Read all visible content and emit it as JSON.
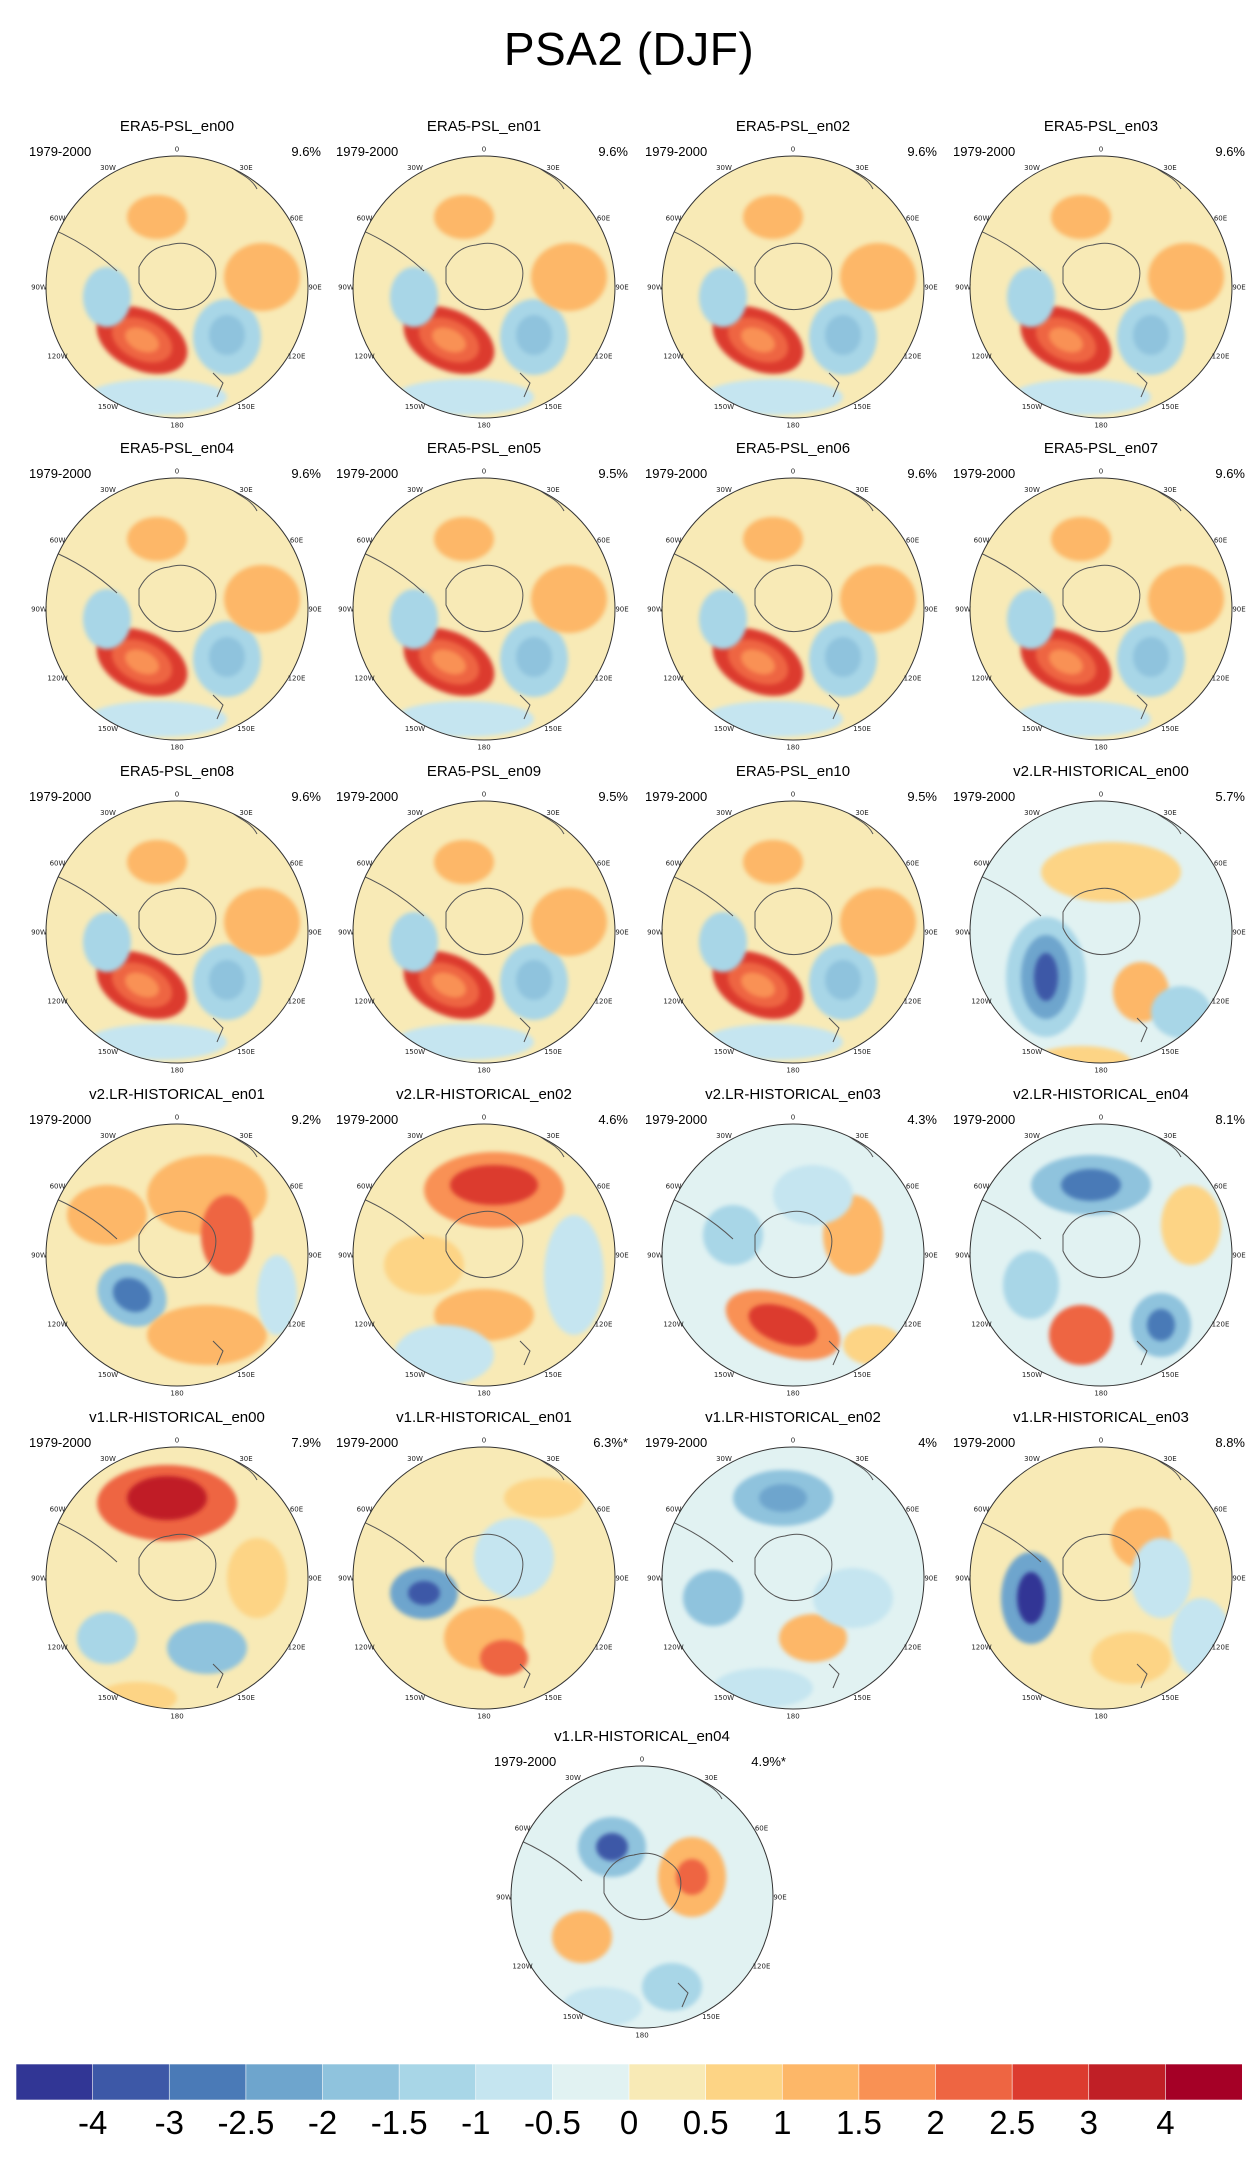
{
  "title": "PSA2 (DJF)",
  "lon_labels": [
    "0",
    "30E",
    "60E",
    "90E",
    "120E",
    "150E",
    "180",
    "150W",
    "120W",
    "90W",
    "60W",
    "30W"
  ],
  "panels": [
    {
      "name": "ERA5-PSL_en00",
      "period": "1979-2000",
      "pct": "9.6%",
      "type": "era5"
    },
    {
      "name": "ERA5-PSL_en01",
      "period": "1979-2000",
      "pct": "9.6%",
      "type": "era5"
    },
    {
      "name": "ERA5-PSL_en02",
      "period": "1979-2000",
      "pct": "9.6%",
      "type": "era5"
    },
    {
      "name": "ERA5-PSL_en03",
      "period": "1979-2000",
      "pct": "9.6%",
      "type": "era5"
    },
    {
      "name": "ERA5-PSL_en04",
      "period": "1979-2000",
      "pct": "9.6%",
      "type": "era5"
    },
    {
      "name": "ERA5-PSL_en05",
      "period": "1979-2000",
      "pct": "9.5%",
      "type": "era5"
    },
    {
      "name": "ERA5-PSL_en06",
      "period": "1979-2000",
      "pct": "9.6%",
      "type": "era5"
    },
    {
      "name": "ERA5-PSL_en07",
      "period": "1979-2000",
      "pct": "9.6%",
      "type": "era5"
    },
    {
      "name": "ERA5-PSL_en08",
      "period": "1979-2000",
      "pct": "9.6%",
      "type": "era5"
    },
    {
      "name": "ERA5-PSL_en09",
      "period": "1979-2000",
      "pct": "9.5%",
      "type": "era5"
    },
    {
      "name": "ERA5-PSL_en10",
      "period": "1979-2000",
      "pct": "9.5%",
      "type": "era5"
    },
    {
      "name": "v2.LR-HISTORICAL_en00",
      "period": "1979-2000",
      "pct": "5.7%",
      "type": "v2en00"
    },
    {
      "name": "v2.LR-HISTORICAL_en01",
      "period": "1979-2000",
      "pct": "9.2%",
      "type": "v2en01"
    },
    {
      "name": "v2.LR-HISTORICAL_en02",
      "period": "1979-2000",
      "pct": "4.6%",
      "type": "v2en02"
    },
    {
      "name": "v2.LR-HISTORICAL_en03",
      "period": "1979-2000",
      "pct": "4.3%",
      "type": "v2en03"
    },
    {
      "name": "v2.LR-HISTORICAL_en04",
      "period": "1979-2000",
      "pct": "8.1%",
      "type": "v2en04"
    },
    {
      "name": "v1.LR-HISTORICAL_en00",
      "period": "1979-2000",
      "pct": "7.9%",
      "type": "v1en00"
    },
    {
      "name": "v1.LR-HISTORICAL_en01",
      "period": "1979-2000",
      "pct": "6.3%*",
      "type": "v1en01"
    },
    {
      "name": "v1.LR-HISTORICAL_en02",
      "period": "1979-2000",
      "pct": "4%",
      "type": "v1en02"
    },
    {
      "name": "v1.LR-HISTORICAL_en03",
      "period": "1979-2000",
      "pct": "8.8%",
      "type": "v1en03"
    },
    {
      "name": "v1.LR-HISTORICAL_en04",
      "period": "1979-2000",
      "pct": "4.9%*",
      "type": "v1en04"
    }
  ],
  "colorbar": {
    "labels": [
      "-4",
      "-3",
      "-2.5",
      "-2",
      "-1.5",
      "-1",
      "-0.5",
      "0",
      "0.5",
      "1",
      "1.5",
      "2",
      "2.5",
      "3",
      "4"
    ],
    "colors": [
      "#313695",
      "#3d58a7",
      "#4a7ab7",
      "#6ea5cd",
      "#8fc3dd",
      "#a8d6e7",
      "#c5e5f0",
      "#e1f2f2",
      "#f8eab6",
      "#fdd485",
      "#fdb768",
      "#f99154",
      "#ee6542",
      "#dc3b2f",
      "#c01f26",
      "#a50026"
    ]
  }
}
